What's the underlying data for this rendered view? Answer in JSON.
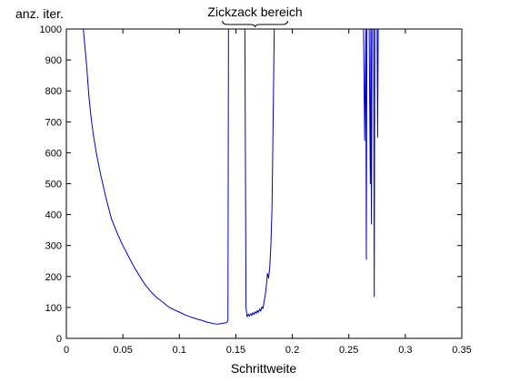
{
  "chart_data": {
    "type": "line",
    "title": "",
    "xlabel": "Schrittweite",
    "ylabel": "anz. iter.",
    "xlim": [
      0,
      0.35
    ],
    "ylim": [
      0,
      1000
    ],
    "xticks": [
      0,
      0.05,
      0.1,
      0.15,
      0.2,
      0.25,
      0.3,
      0.35
    ],
    "xtick_labels": [
      "0",
      "0.05",
      "0.1",
      "0.15",
      "0.2",
      "0.25",
      "0.3",
      "0.35"
    ],
    "yticks": [
      0,
      100,
      200,
      300,
      400,
      500,
      600,
      700,
      800,
      900,
      1000
    ],
    "ytick_labels": [
      "0",
      "100",
      "200",
      "300",
      "400",
      "500",
      "600",
      "700",
      "800",
      "900",
      "1000"
    ],
    "grid": false,
    "line_color": "#0000cc",
    "annotation": {
      "text": "Zickzack bereich",
      "x_start": 0.143,
      "x_end": 0.191
    },
    "series": [
      {
        "segments": [
          [
            [
              0.015,
              1000
            ],
            [
              0.016,
              960
            ],
            [
              0.018,
              880
            ],
            [
              0.02,
              780
            ],
            [
              0.022,
              710
            ],
            [
              0.024,
              655
            ],
            [
              0.027,
              590
            ],
            [
              0.03,
              535
            ],
            [
              0.035,
              455
            ],
            [
              0.04,
              385
            ],
            [
              0.045,
              340
            ],
            [
              0.05,
              300
            ],
            [
              0.055,
              265
            ],
            [
              0.06,
              230
            ],
            [
              0.065,
              200
            ],
            [
              0.07,
              172
            ],
            [
              0.075,
              150
            ],
            [
              0.08,
              132
            ],
            [
              0.085,
              118
            ],
            [
              0.09,
              103
            ],
            [
              0.095,
              93
            ],
            [
              0.1,
              85
            ],
            [
              0.105,
              76
            ],
            [
              0.11,
              69
            ],
            [
              0.115,
              63
            ],
            [
              0.12,
              58
            ],
            [
              0.125,
              52
            ],
            [
              0.13,
              48
            ],
            [
              0.133,
              46
            ],
            [
              0.136,
              47
            ],
            [
              0.139,
              49
            ],
            [
              0.142,
              51
            ],
            [
              0.143,
              58
            ],
            [
              0.1435,
              1000
            ]
          ],
          [
            [
              0.158,
              1000
            ],
            [
              0.159,
              100
            ],
            [
              0.16,
              70
            ],
            [
              0.161,
              78
            ],
            [
              0.162,
              72
            ],
            [
              0.163,
              80
            ],
            [
              0.164,
              74
            ],
            [
              0.165,
              83
            ],
            [
              0.166,
              77
            ],
            [
              0.167,
              86
            ],
            [
              0.168,
              80
            ],
            [
              0.169,
              90
            ],
            [
              0.17,
              84
            ],
            [
              0.171,
              95
            ],
            [
              0.172,
              88
            ],
            [
              0.173,
              102
            ],
            [
              0.174,
              96
            ],
            [
              0.175,
              118
            ],
            [
              0.176,
              140
            ],
            [
              0.177,
              170
            ],
            [
              0.178,
              210
            ],
            [
              0.179,
              195
            ],
            [
              0.18,
              230
            ],
            [
              0.181,
              300
            ],
            [
              0.182,
              420
            ],
            [
              0.183,
              700
            ],
            [
              0.184,
              1000
            ]
          ],
          [
            [
              0.263,
              1000
            ],
            [
              0.264,
              640
            ],
            [
              0.265,
              1000
            ],
            [
              0.2655,
              255
            ],
            [
              0.266,
              1000
            ]
          ],
          [
            [
              0.268,
              1000
            ],
            [
              0.269,
              500
            ],
            [
              0.2695,
              1000
            ],
            [
              0.27,
              370
            ],
            [
              0.2705,
              1000
            ]
          ],
          [
            [
              0.272,
              1000
            ],
            [
              0.2725,
              135
            ],
            [
              0.273,
              1000
            ]
          ],
          [
            [
              0.275,
              1000
            ],
            [
              0.2755,
              650
            ],
            [
              0.276,
              1000
            ]
          ]
        ]
      }
    ]
  }
}
